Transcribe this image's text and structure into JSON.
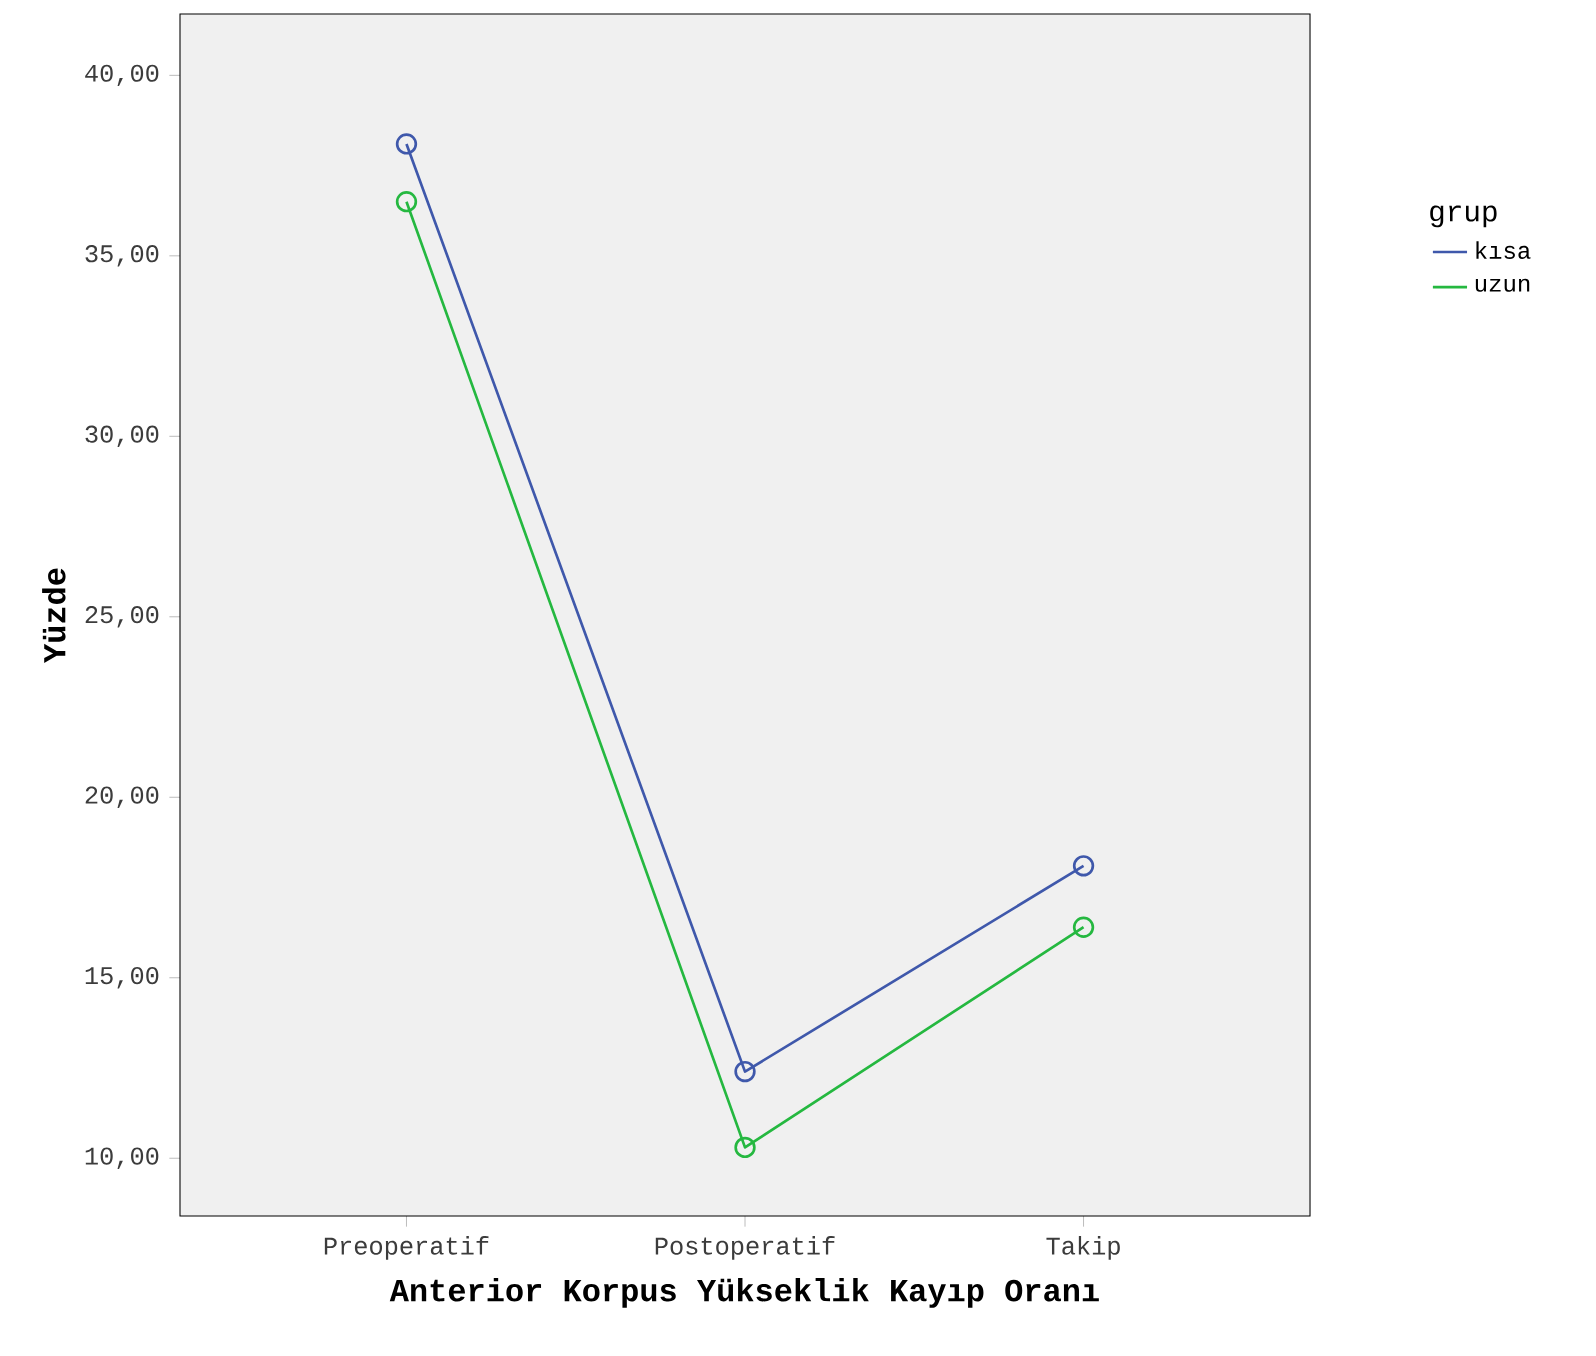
{
  "chart_data": {
    "type": "line",
    "xlabel": "Anterior Korpus Yükseklik Kayıp Oranı",
    "ylabel": "Yüzde",
    "legend_title": "grup",
    "categories": [
      "Preoperatif",
      "Postoperatif",
      "Takip"
    ],
    "series": [
      {
        "name": "kısa",
        "color": "#3f58ab",
        "values": [
          38.1,
          12.4,
          18.1
        ]
      },
      {
        "name": "uzun",
        "color": "#25b840",
        "values": [
          36.5,
          10.3,
          16.4
        ]
      }
    ],
    "ylim": [
      8.4,
      41.7
    ],
    "yticks": [
      {
        "value": 10,
        "label": "10,00"
      },
      {
        "value": 15,
        "label": "15,00"
      },
      {
        "value": 20,
        "label": "20,00"
      },
      {
        "value": 25,
        "label": "25,00"
      },
      {
        "value": 30,
        "label": "30,00"
      },
      {
        "value": 35,
        "label": "35,00"
      },
      {
        "value": 40,
        "label": "40,00"
      }
    ],
    "grid": false,
    "legend": "right",
    "marker": "circle",
    "line_style": "solid"
  }
}
